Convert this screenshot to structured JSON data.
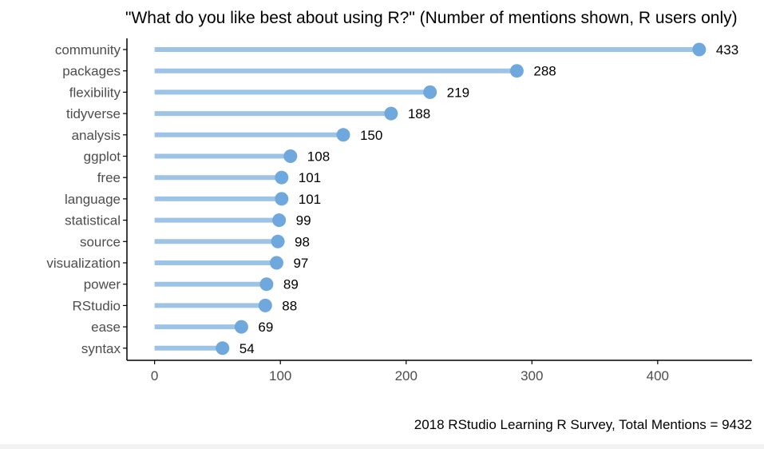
{
  "chart_data": {
    "type": "bar",
    "style": "lollipop",
    "orientation": "horizontal",
    "title": "\"What do you like best about using R?\" (Number of mentions shown, R users only)",
    "caption": "2018 RStudio Learning R Survey, Total Mentions = 9432",
    "xlabel": "",
    "ylabel": "",
    "categories": [
      "community",
      "packages",
      "flexibility",
      "tidyverse",
      "analysis",
      "ggplot",
      "free",
      "language",
      "statistical",
      "source",
      "visualization",
      "power",
      "RStudio",
      "ease",
      "syntax"
    ],
    "values": [
      433,
      288,
      219,
      188,
      150,
      108,
      101,
      101,
      99,
      98,
      97,
      89,
      88,
      69,
      54
    ],
    "xlim": [
      -22,
      475
    ],
    "xticks": [
      0,
      100,
      200,
      300,
      400
    ],
    "grid": false,
    "legend": "none",
    "colors": {
      "stem": "#9dc3e6",
      "point": "#6fa8dc",
      "axis": "#000000",
      "tick_text": "#4d4d4d",
      "value_text": "#000000"
    }
  }
}
